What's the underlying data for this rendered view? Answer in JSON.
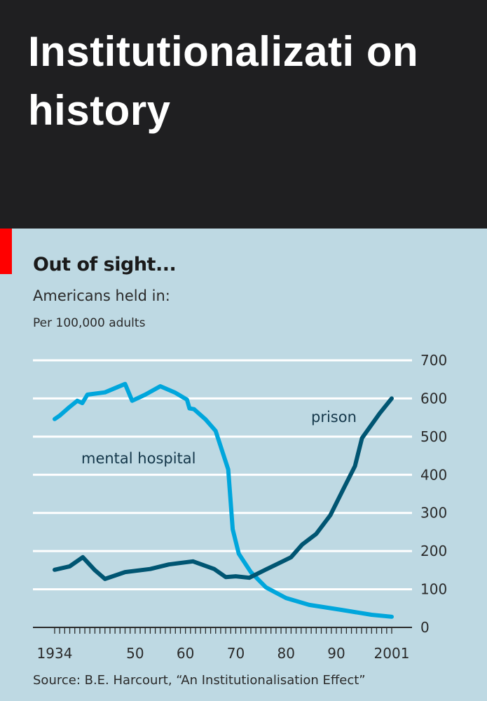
{
  "header": {
    "title": "Institutionalizati on history"
  },
  "chart_data": {
    "type": "line",
    "title": "Out of sight...",
    "subtitle": "Americans held in:",
    "ylabel": "Per 100,000 adults",
    "source": "Source: B.E. Harcourt, “An Institutionalisation Effect”",
    "xlim": [
      1934,
      2001
    ],
    "ylim": [
      0,
      700
    ],
    "x_ticks": [
      1934,
      1950,
      1960,
      1970,
      1980,
      1990,
      2001
    ],
    "x_tick_labels": [
      "1934",
      "50",
      "60",
      "70",
      "80",
      "90",
      "2001"
    ],
    "y_ticks": [
      0,
      100,
      200,
      300,
      400,
      500,
      600,
      700
    ],
    "y_tick_labels": [
      "0",
      "100",
      "200",
      "300",
      "400",
      "500",
      "600",
      "700"
    ],
    "y_axis_side": "right",
    "grid": true,
    "colors": {
      "background": "#bed9e3",
      "mental_hospital": "#00a6dc",
      "prison": "#005572",
      "accent": "#ff0000"
    },
    "series": [
      {
        "name": "mental hospital",
        "x": [
          1934,
          1935,
          1937,
          1938.5,
          1939.5,
          1940.5,
          1944,
          1948,
          1949.4,
          1952,
          1955,
          1958,
          1960.3,
          1960.8,
          1961.7,
          1964,
          1966,
          1968.5,
          1969.4,
          1970.6,
          1973,
          1976,
          1980,
          1984.6,
          1991,
          1997,
          2001
        ],
        "y": [
          546,
          555,
          578,
          594,
          588,
          610,
          616,
          638,
          594,
          610,
          632,
          615,
          597,
          574,
          572,
          545,
          515,
          414,
          257,
          193,
          145,
          105,
          77,
          59,
          46,
          33,
          28
        ]
      },
      {
        "name": "prison",
        "x": [
          1934,
          1937,
          1939.6,
          1942,
          1944,
          1948,
          1953,
          1956.7,
          1961.5,
          1965.7,
          1968,
          1970,
          1972.7,
          1976.2,
          1979,
          1981,
          1983.2,
          1986,
          1988.8,
          1991.6,
          1993.7,
          1995.1,
          1998.6,
          2001
        ],
        "y": [
          151,
          160,
          184,
          150,
          127,
          145,
          153,
          165,
          173,
          153,
          132,
          134,
          130,
          153,
          171,
          184,
          217,
          245,
          294,
          368,
          423,
          496,
          561,
          600
        ]
      }
    ]
  }
}
